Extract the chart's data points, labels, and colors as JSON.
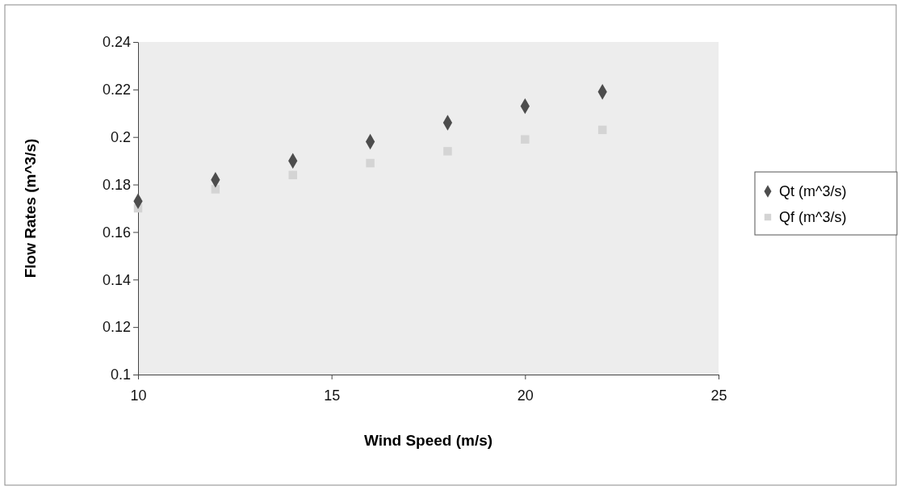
{
  "chart_data": {
    "type": "scatter",
    "xlabel": "Wind Speed (m/s)",
    "ylabel": "Flow Rates (m^3/s)",
    "x": [
      10,
      12,
      14,
      16,
      18,
      20,
      22
    ],
    "series": [
      {
        "name": "Qt (m^3/s)",
        "color": "#4d4d4d",
        "marker": "diamond",
        "values": [
          0.173,
          0.182,
          0.19,
          0.198,
          0.206,
          0.213,
          0.219
        ]
      },
      {
        "name": "Qf (m^3/s)",
        "color": "#d4d4d4",
        "marker": "square",
        "values": [
          0.17,
          0.178,
          0.184,
          0.189,
          0.194,
          0.199,
          0.203
        ]
      }
    ],
    "xlim": [
      10,
      25
    ],
    "xticks": [
      10,
      15,
      20,
      25
    ],
    "ylim": [
      0.1,
      0.24
    ],
    "yticks": [
      0.1,
      0.12,
      0.14,
      0.16,
      0.18,
      0.2,
      0.22,
      0.24
    ],
    "grid": false,
    "legend": "right"
  }
}
